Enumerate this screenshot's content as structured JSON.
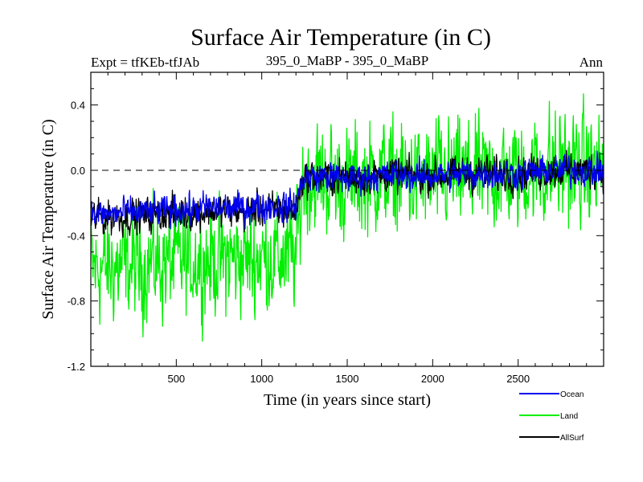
{
  "header": {
    "experiment_label": "Expt = tfKEb-tfJAb",
    "comparison_label": "395_0_MaBP - 395_0_MaBP",
    "season_label": "Ann"
  },
  "chart_data": {
    "type": "line",
    "title": "Surface Air Temperature (in C)",
    "xlabel": "Time (in years since start)",
    "ylabel": "Surface Air Temperature (in C)",
    "xlim": [
      0,
      3000
    ],
    "ylim": [
      -1.2,
      0.6
    ],
    "x_ticks": [
      500,
      1000,
      1500,
      2000,
      2500
    ],
    "y_ticks": [
      -1.2,
      -0.8,
      -0.4,
      0.0,
      0.4
    ],
    "y_tick_labels": [
      "-1.2",
      "-0.8",
      "-0.4",
      "0.0",
      "0.4"
    ],
    "reference_line": 0.0,
    "grid": false,
    "legend_position": "bottom-right",
    "x": [
      0,
      100,
      200,
      300,
      400,
      500,
      600,
      700,
      800,
      900,
      1000,
      1100,
      1200,
      1240,
      1300,
      1400,
      1500,
      1600,
      1700,
      1800,
      1900,
      2000,
      2100,
      2200,
      2300,
      2400,
      2500,
      2600,
      2700,
      2800,
      2900,
      3000
    ],
    "series": [
      {
        "name": "Land",
        "color": "#00ee00",
        "values": [
          -0.6,
          -0.6,
          -0.59,
          -0.58,
          -0.57,
          -0.56,
          -0.55,
          -0.55,
          -0.54,
          -0.54,
          -0.53,
          -0.53,
          -0.53,
          -0.06,
          -0.05,
          -0.06,
          -0.08,
          -0.06,
          -0.03,
          -0.05,
          -0.06,
          -0.05,
          -0.04,
          -0.03,
          -0.04,
          -0.02,
          -0.03,
          0.0,
          0.02,
          0.03,
          0.0,
          0.02
        ],
        "amplitude": [
          0.22,
          0.22,
          0.22,
          0.22,
          0.22,
          0.22,
          0.22,
          0.22,
          0.22,
          0.22,
          0.22,
          0.22,
          0.22,
          0.22,
          0.22,
          0.22,
          0.22,
          0.22,
          0.22,
          0.22,
          0.22,
          0.22,
          0.22,
          0.22,
          0.22,
          0.22,
          0.22,
          0.22,
          0.24,
          0.24,
          0.22,
          0.22
        ]
      },
      {
        "name": "AllSurf",
        "color": "#000000",
        "values": [
          -0.29,
          -0.29,
          -0.28,
          -0.28,
          -0.27,
          -0.26,
          -0.26,
          -0.25,
          -0.25,
          -0.25,
          -0.24,
          -0.24,
          -0.24,
          -0.05,
          -0.04,
          -0.04,
          -0.05,
          -0.04,
          -0.03,
          -0.03,
          -0.04,
          -0.03,
          -0.03,
          -0.02,
          -0.02,
          -0.02,
          -0.02,
          -0.01,
          0.0,
          0.0,
          0.0,
          0.0
        ],
        "amplitude": [
          0.07,
          0.07,
          0.07,
          0.07,
          0.07,
          0.07,
          0.07,
          0.07,
          0.07,
          0.07,
          0.07,
          0.07,
          0.07,
          0.07,
          0.07,
          0.07,
          0.07,
          0.07,
          0.07,
          0.07,
          0.07,
          0.07,
          0.07,
          0.07,
          0.07,
          0.07,
          0.07,
          0.07,
          0.07,
          0.07,
          0.07,
          0.07
        ]
      },
      {
        "name": "Ocean",
        "color": "#0000ee",
        "values": [
          -0.27,
          -0.27,
          -0.26,
          -0.26,
          -0.25,
          -0.24,
          -0.24,
          -0.23,
          -0.23,
          -0.23,
          -0.22,
          -0.22,
          -0.22,
          -0.05,
          -0.04,
          -0.04,
          -0.05,
          -0.04,
          -0.03,
          -0.03,
          -0.04,
          -0.03,
          -0.03,
          -0.02,
          -0.02,
          -0.02,
          -0.02,
          -0.01,
          0.0,
          0.0,
          0.0,
          0.0
        ],
        "amplitude": [
          0.06,
          0.06,
          0.06,
          0.06,
          0.06,
          0.06,
          0.06,
          0.06,
          0.06,
          0.06,
          0.06,
          0.06,
          0.06,
          0.06,
          0.06,
          0.06,
          0.06,
          0.06,
          0.06,
          0.06,
          0.06,
          0.06,
          0.06,
          0.06,
          0.06,
          0.06,
          0.06,
          0.06,
          0.06,
          0.06,
          0.06,
          0.06
        ]
      }
    ],
    "legend": [
      {
        "name": "Ocean",
        "color": "#0000ee"
      },
      {
        "name": "Land",
        "color": "#00ee00"
      },
      {
        "name": "AllSurf",
        "color": "#000000"
      }
    ]
  }
}
